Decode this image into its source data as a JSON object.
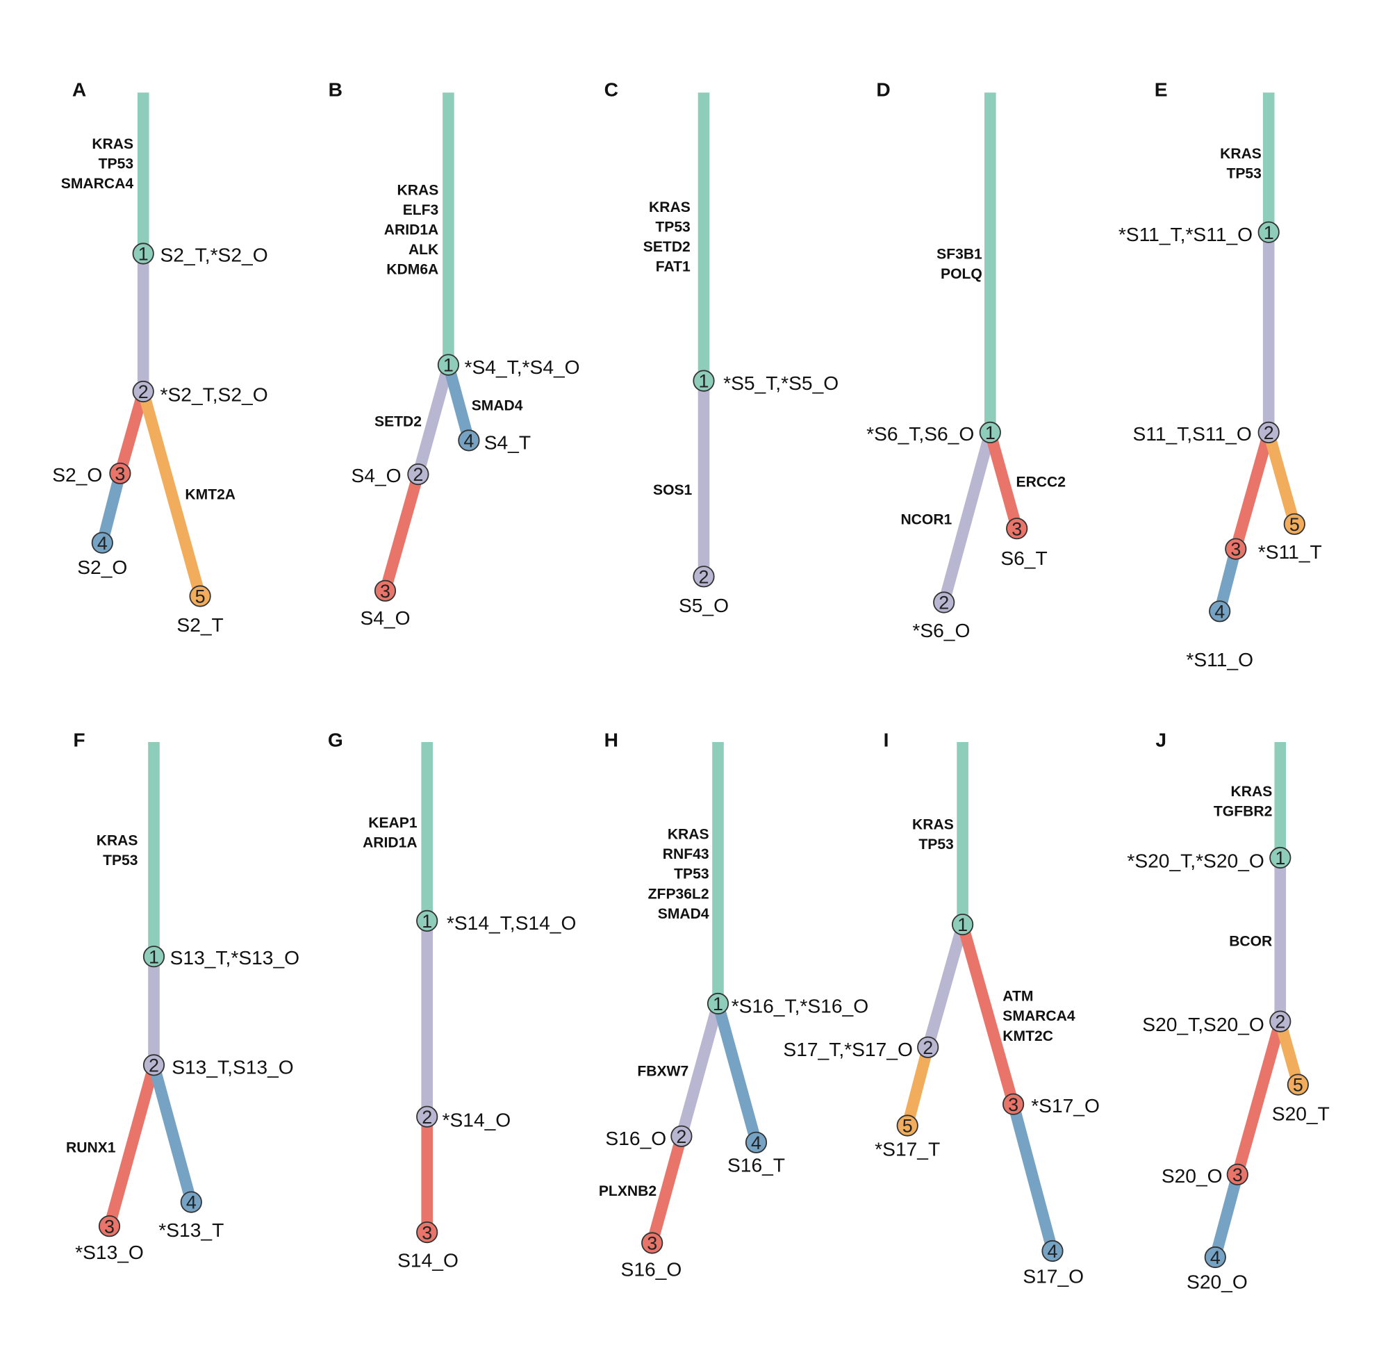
{
  "colors": {
    "c1": "#8ecdb9",
    "c2": "#b9b6d1",
    "c3": "#e9756a",
    "c4": "#76a3c4",
    "c5": "#f2ad5c",
    "text": "#111111"
  },
  "panels": [
    {
      "id": "A",
      "label": "A",
      "branches": [
        {
          "id": "a1",
          "color": "c1",
          "genes": [
            "KRAS",
            "TP53",
            "SMARCA4"
          ]
        },
        {
          "id": "a2",
          "color": "c2",
          "genes": []
        },
        {
          "id": "a3",
          "color": "c3",
          "genes": []
        },
        {
          "id": "a4",
          "color": "c4",
          "genes": []
        },
        {
          "id": "a5",
          "color": "c5",
          "genes": [
            "KMT2A"
          ]
        }
      ],
      "nodes": [
        {
          "id": "A-n1",
          "num": "1",
          "color": "c1",
          "sample": "S2_T,*S2_O"
        },
        {
          "id": "A-n2",
          "num": "2",
          "color": "c2",
          "sample": "*S2_T,S2_O"
        },
        {
          "id": "A-n3",
          "num": "3",
          "color": "c3",
          "sample": "S2_O"
        },
        {
          "id": "A-n4",
          "num": "4",
          "color": "c4",
          "sample": "S2_O"
        },
        {
          "id": "A-n5",
          "num": "5",
          "color": "c5",
          "sample": "S2_T"
        }
      ]
    },
    {
      "id": "B",
      "label": "B",
      "branches": [
        {
          "id": "b1",
          "color": "c1",
          "genes": [
            "KRAS",
            "ELF3",
            "ARID1A",
            "ALK",
            "KDM6A"
          ]
        },
        {
          "id": "b2",
          "color": "c2",
          "genes": [
            "SETD2"
          ]
        },
        {
          "id": "b3",
          "color": "c3",
          "genes": []
        },
        {
          "id": "b4",
          "color": "c4",
          "genes": [
            "SMAD4"
          ]
        }
      ],
      "nodes": [
        {
          "id": "B-n1",
          "num": "1",
          "color": "c1",
          "sample": "*S4_T,*S4_O"
        },
        {
          "id": "B-n2",
          "num": "2",
          "color": "c2",
          "sample": "S4_O"
        },
        {
          "id": "B-n3",
          "num": "3",
          "color": "c3",
          "sample": "S4_O"
        },
        {
          "id": "B-n4",
          "num": "4",
          "color": "c4",
          "sample": "S4_T"
        }
      ]
    },
    {
      "id": "C",
      "label": "C",
      "branches": [
        {
          "id": "c1b",
          "color": "c1",
          "genes": [
            "KRAS",
            "TP53",
            "SETD2",
            "FAT1"
          ]
        },
        {
          "id": "c2b",
          "color": "c2",
          "genes": [
            "SOS1"
          ]
        }
      ],
      "nodes": [
        {
          "id": "C-n1",
          "num": "1",
          "color": "c1",
          "sample": "*S5_T,*S5_O"
        },
        {
          "id": "C-n2",
          "num": "2",
          "color": "c2",
          "sample": "S5_O"
        }
      ]
    },
    {
      "id": "D",
      "label": "D",
      "branches": [
        {
          "id": "d1",
          "color": "c1",
          "genes": [
            "SF3B1",
            "POLQ"
          ]
        },
        {
          "id": "d2",
          "color": "c2",
          "genes": [
            "NCOR1"
          ]
        },
        {
          "id": "d3",
          "color": "c3",
          "genes": [
            "ERCC2"
          ]
        }
      ],
      "nodes": [
        {
          "id": "D-n1",
          "num": "1",
          "color": "c1",
          "sample": "*S6_T,S6_O"
        },
        {
          "id": "D-n2",
          "num": "2",
          "color": "c2",
          "sample": "*S6_O"
        },
        {
          "id": "D-n3",
          "num": "3",
          "color": "c3",
          "sample": "S6_T"
        }
      ]
    },
    {
      "id": "E",
      "label": "E",
      "branches": [
        {
          "id": "e1",
          "color": "c1",
          "genes": [
            "KRAS",
            "TP53"
          ]
        },
        {
          "id": "e2",
          "color": "c2",
          "genes": []
        },
        {
          "id": "e3",
          "color": "c3",
          "genes": []
        },
        {
          "id": "e4",
          "color": "c4",
          "genes": []
        },
        {
          "id": "e5",
          "color": "c5",
          "genes": []
        }
      ],
      "nodes": [
        {
          "id": "E-n1",
          "num": "1",
          "color": "c1",
          "sample": "*S11_T,*S11_O"
        },
        {
          "id": "E-n2",
          "num": "2",
          "color": "c2",
          "sample": "S11_T,S11_O"
        },
        {
          "id": "E-n3",
          "num": "3",
          "color": "c3",
          "sample": ""
        },
        {
          "id": "E-n4",
          "num": "4",
          "color": "c4",
          "sample": "*S11_O"
        },
        {
          "id": "E-n5",
          "num": "5",
          "color": "c5",
          "sample": "*S11_T"
        }
      ]
    },
    {
      "id": "F",
      "label": "F",
      "branches": [
        {
          "id": "f1",
          "color": "c1",
          "genes": [
            "KRAS",
            "TP53"
          ]
        },
        {
          "id": "f2",
          "color": "c2",
          "genes": []
        },
        {
          "id": "f3",
          "color": "c3",
          "genes": [
            "RUNX1"
          ]
        },
        {
          "id": "f4",
          "color": "c4",
          "genes": []
        }
      ],
      "nodes": [
        {
          "id": "F-n1",
          "num": "1",
          "color": "c1",
          "sample": "S13_T,*S13_O"
        },
        {
          "id": "F-n2",
          "num": "2",
          "color": "c2",
          "sample": "S13_T,S13_O"
        },
        {
          "id": "F-n3",
          "num": "3",
          "color": "c3",
          "sample": "*S13_O"
        },
        {
          "id": "F-n4",
          "num": "4",
          "color": "c4",
          "sample": "*S13_T"
        }
      ]
    },
    {
      "id": "G",
      "label": "G",
      "branches": [
        {
          "id": "g1",
          "color": "c1",
          "genes": [
            "KEAP1",
            "ARID1A"
          ]
        },
        {
          "id": "g2",
          "color": "c2",
          "genes": []
        },
        {
          "id": "g3",
          "color": "c3",
          "genes": []
        }
      ],
      "nodes": [
        {
          "id": "G-n1",
          "num": "1",
          "color": "c1",
          "sample": "*S14_T,S14_O"
        },
        {
          "id": "G-n2",
          "num": "2",
          "color": "c2",
          "sample": "*S14_O"
        },
        {
          "id": "G-n3",
          "num": "3",
          "color": "c3",
          "sample": "S14_O"
        }
      ]
    },
    {
      "id": "H",
      "label": "H",
      "branches": [
        {
          "id": "h1",
          "color": "c1",
          "genes": [
            "KRAS",
            "RNF43",
            "TP53",
            "ZFP36L2",
            "SMAD4"
          ]
        },
        {
          "id": "h2",
          "color": "c2",
          "genes": [
            "FBXW7"
          ]
        },
        {
          "id": "h3",
          "color": "c3",
          "genes": [
            "PLXNB2"
          ]
        },
        {
          "id": "h4",
          "color": "c4",
          "genes": []
        }
      ],
      "nodes": [
        {
          "id": "H-n1",
          "num": "1",
          "color": "c1",
          "sample": "*S16_T,*S16_O"
        },
        {
          "id": "H-n2",
          "num": "2",
          "color": "c2",
          "sample": "S16_O"
        },
        {
          "id": "H-n3",
          "num": "3",
          "color": "c3",
          "sample": "S16_O"
        },
        {
          "id": "H-n4",
          "num": "4",
          "color": "c4",
          "sample": "S16_T"
        }
      ]
    },
    {
      "id": "I",
      "label": "I",
      "branches": [
        {
          "id": "i1",
          "color": "c1",
          "genes": [
            "KRAS",
            "TP53"
          ]
        },
        {
          "id": "i2",
          "color": "c2",
          "genes": []
        },
        {
          "id": "i3",
          "color": "c3",
          "genes": [
            "ATM",
            "SMARCA4",
            "KMT2C"
          ]
        },
        {
          "id": "i4",
          "color": "c4",
          "genes": []
        },
        {
          "id": "i5",
          "color": "c5",
          "genes": []
        }
      ],
      "nodes": [
        {
          "id": "I-n1",
          "num": "1",
          "color": "c1",
          "sample": ""
        },
        {
          "id": "I-n2",
          "num": "2",
          "color": "c2",
          "sample": "S17_T,*S17_O"
        },
        {
          "id": "I-n3",
          "num": "3",
          "color": "c3",
          "sample": "*S17_O"
        },
        {
          "id": "I-n4",
          "num": "4",
          "color": "c4",
          "sample": "S17_O"
        },
        {
          "id": "I-n5",
          "num": "5",
          "color": "c5",
          "sample": "*S17_T"
        }
      ]
    },
    {
      "id": "J",
      "label": "J",
      "branches": [
        {
          "id": "j1",
          "color": "c1",
          "genes": [
            "KRAS",
            "TGFBR2"
          ]
        },
        {
          "id": "j2",
          "color": "c2",
          "genes": [
            "BCOR"
          ]
        },
        {
          "id": "j3",
          "color": "c3",
          "genes": []
        },
        {
          "id": "j4",
          "color": "c4",
          "genes": []
        },
        {
          "id": "j5",
          "color": "c5",
          "genes": []
        }
      ],
      "nodes": [
        {
          "id": "J-n1",
          "num": "1",
          "color": "c1",
          "sample": "*S20_T,*S20_O"
        },
        {
          "id": "J-n2",
          "num": "2",
          "color": "c2",
          "sample": "S20_T,S20_O"
        },
        {
          "id": "J-n3",
          "num": "3",
          "color": "c3",
          "sample": "S20_O"
        },
        {
          "id": "J-n4",
          "num": "4",
          "color": "c4",
          "sample": "S20_O"
        },
        {
          "id": "J-n5",
          "num": "5",
          "color": "c5",
          "sample": "S20_T"
        }
      ]
    }
  ]
}
